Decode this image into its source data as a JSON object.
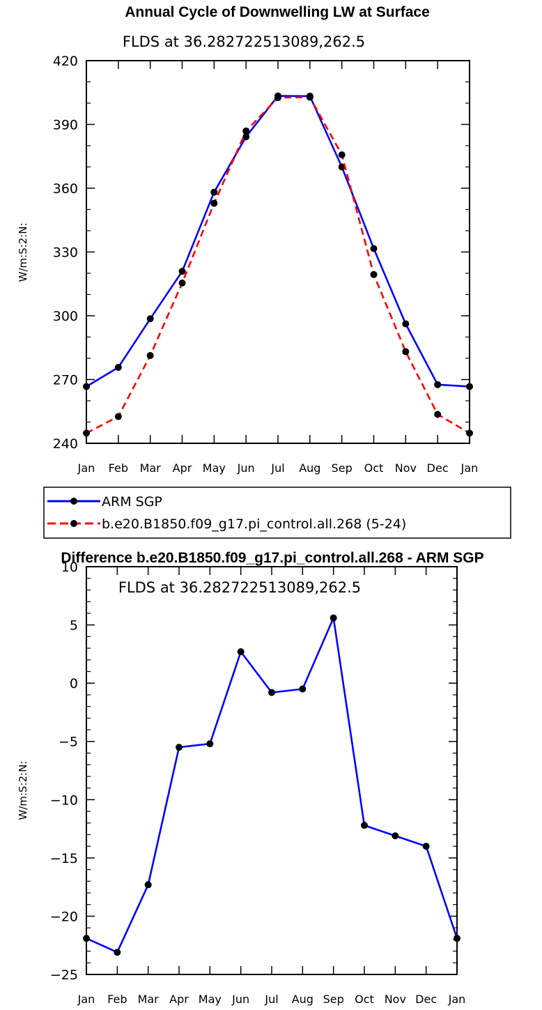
{
  "chart_data": [
    {
      "type": "line",
      "title": "Annual Cycle of Downwelling LW at Surface",
      "subtitle": "FLDS at 36.282722513089,262.5",
      "ylabel": "W/m:S:2:N:",
      "xlabel": "",
      "categories": [
        "Jan",
        "Feb",
        "Mar",
        "Apr",
        "May",
        "Jun",
        "Jul",
        "Aug",
        "Sep",
        "Oct",
        "Nov",
        "Dec",
        "Jan"
      ],
      "ylim": [
        240,
        420
      ],
      "yticks": [
        240,
        270,
        300,
        330,
        360,
        390,
        420
      ],
      "grid": false,
      "legend_position": "bottom",
      "series": [
        {
          "name": "ARM SGP",
          "color": "#0000ff",
          "dash": "solid",
          "marker": "circle",
          "values": [
            266.7,
            275.7,
            298.6,
            320.9,
            358.1,
            384.2,
            403.4,
            403.3,
            370.0,
            331.6,
            296.2,
            267.6,
            266.7
          ]
        },
        {
          "name": "b.e20.B1850.f09_g17.pi_control.all.268 (5-24)",
          "color": "#ff0000",
          "dash": "dashed",
          "marker": "circle",
          "values": [
            244.8,
            252.6,
            281.3,
            315.4,
            352.9,
            386.9,
            402.6,
            402.8,
            375.7,
            319.4,
            283.1,
            253.6,
            244.8
          ]
        }
      ]
    },
    {
      "type": "line",
      "title": "Difference b.e20.B1850.f09_g17.pi_control.all.268 - ARM SGP",
      "subtitle": "FLDS at 36.282722513089,262.5",
      "ylabel": "W/m:S:2:N:",
      "xlabel": "",
      "categories": [
        "Jan",
        "Feb",
        "Mar",
        "Apr",
        "May",
        "Jun",
        "Jul",
        "Aug",
        "Sep",
        "Oct",
        "Nov",
        "Dec",
        "Jan"
      ],
      "ylim": [
        -25,
        10
      ],
      "yticks": [
        -25,
        -20,
        -15,
        -10,
        -5,
        0,
        5,
        10
      ],
      "grid": false,
      "series": [
        {
          "color": "#0000ff",
          "dash": "solid",
          "marker": "circle",
          "values": [
            -21.9,
            -23.1,
            -17.3,
            -5.5,
            -5.2,
            2.7,
            -0.8,
            -0.5,
            5.6,
            -12.2,
            -13.1,
            -14.0,
            -21.9
          ]
        }
      ]
    }
  ]
}
